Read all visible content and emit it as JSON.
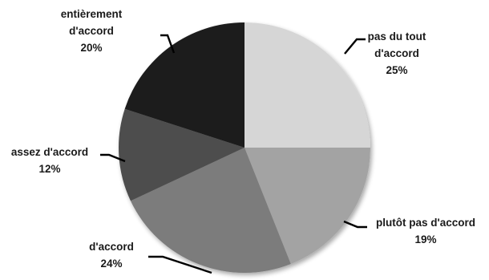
{
  "chart_data": {
    "type": "pie",
    "categories": [
      "pas du tout d'accord",
      "plutôt pas d'accord",
      "d'accord",
      "assez d'accord",
      "entièrement d'accord"
    ],
    "values": [
      25,
      19,
      24,
      12,
      20
    ],
    "value_labels": [
      "25%",
      "19%",
      "24%",
      "12%",
      "20%"
    ],
    "label_lines": [
      [
        "pas du tout",
        "d'accord",
        "25%"
      ],
      [
        "plutôt pas d'accord",
        "19%"
      ],
      [
        "d'accord",
        "24%"
      ],
      [
        "assez d'accord",
        "12%"
      ],
      [
        "entièrement",
        "d'accord",
        "20%"
      ]
    ],
    "colors": [
      "#d6d6d6",
      "#a3a3a3",
      "#7b7b7b",
      "#4e4e4e",
      "#1c1c1c"
    ],
    "start_angle": "12 o'clock",
    "direction": "clockwise",
    "legend": "none"
  }
}
